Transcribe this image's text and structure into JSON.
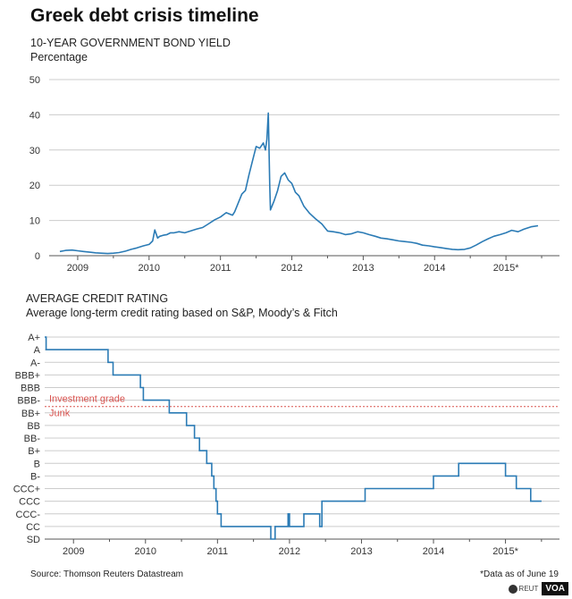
{
  "title": "Greek debt crisis timeline",
  "source": "Source: Thomson Reuters Datastream",
  "note": "*Data as of June 19",
  "credits": {
    "agency": "REUT",
    "outlet": "VOA"
  },
  "colors": {
    "series": "#2b7bb5",
    "threshold": "#d9534f",
    "grid": "#cccccc",
    "axis": "#555555"
  },
  "chart_data": [
    {
      "type": "line",
      "title": "10-YEAR GOVERNMENT BOND YIELD",
      "subtitle": "Percentage",
      "ylim": [
        0,
        50
      ],
      "yticks": [
        0,
        10,
        20,
        30,
        40,
        50
      ],
      "xlim": [
        2008.6,
        2015.75
      ],
      "xtick_labels": [
        "2009",
        "2010",
        "2011",
        "2012",
        "2013",
        "2014",
        "2015*"
      ],
      "xtick_positions": [
        2009,
        2010,
        2011,
        2012,
        2013,
        2014,
        2015
      ],
      "grid": true,
      "series": [
        {
          "x": [
            2008.75,
            2008.83,
            2008.92,
            2009.0,
            2009.08,
            2009.17,
            2009.25,
            2009.33,
            2009.42,
            2009.5,
            2009.58,
            2009.67,
            2009.75,
            2009.83,
            2009.92,
            2010.0,
            2010.05,
            2010.08,
            2010.12,
            2010.15,
            2010.2,
            2010.25,
            2010.3,
            2010.35,
            2010.42,
            2010.5,
            2010.58,
            2010.67,
            2010.75,
            2010.83,
            2010.92,
            2011.0,
            2011.08,
            2011.17,
            2011.2,
            2011.25,
            2011.3,
            2011.35,
            2011.4,
            2011.45,
            2011.5,
            2011.55,
            2011.6,
            2011.63,
            2011.65,
            2011.67,
            2011.69,
            2011.7,
            2011.72,
            2011.75,
            2011.8,
            2011.85,
            2011.9,
            2011.95,
            2012.0,
            2012.05,
            2012.1,
            2012.17,
            2012.25,
            2012.33,
            2012.42,
            2012.5,
            2012.58,
            2012.67,
            2012.75,
            2012.83,
            2012.92,
            2013.0,
            2013.08,
            2013.17,
            2013.25,
            2013.33,
            2013.42,
            2013.5,
            2013.58,
            2013.67,
            2013.75,
            2013.83,
            2013.92,
            2014.0,
            2014.08,
            2014.17,
            2014.25,
            2014.33,
            2014.42,
            2014.5,
            2014.58,
            2014.67,
            2014.75,
            2014.83,
            2014.92,
            2015.0,
            2015.08,
            2015.17,
            2015.25,
            2015.35,
            2015.45
          ],
          "y": [
            1.2,
            1.5,
            1.6,
            1.4,
            1.2,
            1.0,
            0.8,
            0.7,
            0.6,
            0.7,
            0.9,
            1.3,
            1.8,
            2.2,
            2.8,
            3.2,
            4.2,
            7.3,
            5.0,
            5.5,
            5.8,
            6.0,
            6.5,
            6.5,
            6.8,
            6.5,
            7.0,
            7.6,
            8.0,
            9.0,
            10.2,
            11.0,
            12.2,
            11.5,
            12.5,
            15.0,
            17.5,
            18.5,
            23.0,
            27.0,
            31.0,
            30.5,
            32.0,
            30.0,
            33.0,
            40.5,
            20.0,
            13.0,
            14.0,
            15.5,
            18.5,
            22.5,
            23.5,
            21.5,
            20.5,
            18.0,
            17.0,
            14.0,
            12.0,
            10.5,
            9.0,
            7.0,
            6.8,
            6.5,
            6.0,
            6.2,
            6.8,
            6.5,
            6.0,
            5.5,
            5.0,
            4.8,
            4.5,
            4.2,
            4.0,
            3.8,
            3.5,
            3.0,
            2.8,
            2.5,
            2.3,
            2.0,
            1.8,
            1.7,
            1.8,
            2.2,
            3.0,
            4.0,
            4.8,
            5.5,
            6.0,
            6.5,
            7.2,
            6.8,
            7.5,
            8.2,
            8.5
          ]
        }
      ]
    },
    {
      "type": "line",
      "title": "AVERAGE CREDIT RATING",
      "subtitle": "Average long-term credit rating based on S&P, Moody’s & Fitch",
      "categories": [
        "A+",
        "A",
        "A-",
        "BBB+",
        "BBB",
        "BBB-",
        "BB+",
        "BB",
        "BB-",
        "B+",
        "B",
        "B-",
        "CCC+",
        "CCC",
        "CCC-",
        "CC",
        "SD"
      ],
      "xlim": [
        2008.6,
        2015.75
      ],
      "xtick_labels": [
        "2009",
        "2010",
        "2011",
        "2012",
        "2013",
        "2014",
        "2015*"
      ],
      "xtick_positions": [
        2009,
        2010,
        2011,
        2012,
        2013,
        2014,
        2015
      ],
      "grid": true,
      "threshold": {
        "upper_label": "Investment grade",
        "lower_label": "Junk",
        "between": [
          "BBB-",
          "BB+"
        ]
      },
      "series": [
        {
          "x": [
            2008.6,
            2008.62,
            2009.35,
            2009.48,
            2009.55,
            2009.87,
            2009.93,
            2009.97,
            2010.33,
            2010.57,
            2010.68,
            2010.75,
            2010.85,
            2010.92,
            2010.95,
            2010.98,
            2011.0,
            2011.05,
            2011.07,
            2011.1,
            2011.12,
            2011.15,
            2011.72,
            2011.74,
            2011.76,
            2011.78,
            2011.8,
            2011.95,
            2011.98,
            2012.0,
            2012.2,
            2012.4,
            2012.42,
            2012.45,
            2012.5,
            2012.75,
            2012.8,
            2013.05,
            2013.3,
            2013.55,
            2013.8,
            2014.0,
            2014.17,
            2014.35,
            2014.5,
            2014.7,
            2014.9,
            2015.0,
            2015.15,
            2015.28,
            2015.35,
            2015.45,
            2015.5
          ],
          "y": [
            "A+",
            "A",
            "A",
            "A-",
            "BBB+",
            "BBB+",
            "BBB",
            "BBB-",
            "BB+",
            "BB",
            "BB-",
            "B+",
            "B",
            "B-",
            "CCC+",
            "CCC",
            "CCC-",
            "CC",
            "CC",
            "CC",
            "CC",
            "CC",
            "CC",
            "SD",
            "SD",
            "SD",
            "CC",
            "CC",
            "CCC-",
            "CC",
            "CCC-",
            "CCC-",
            "CC",
            "CCC",
            "CCC",
            "CCC",
            "CCC",
            "CCC+",
            "CCC+",
            "CCC+",
            "CCC+",
            "B-",
            "B-",
            "B",
            "B",
            "B",
            "B",
            "B-",
            "CCC+",
            "CCC+",
            "CCC",
            "CCC",
            "CCC"
          ]
        }
      ]
    }
  ]
}
